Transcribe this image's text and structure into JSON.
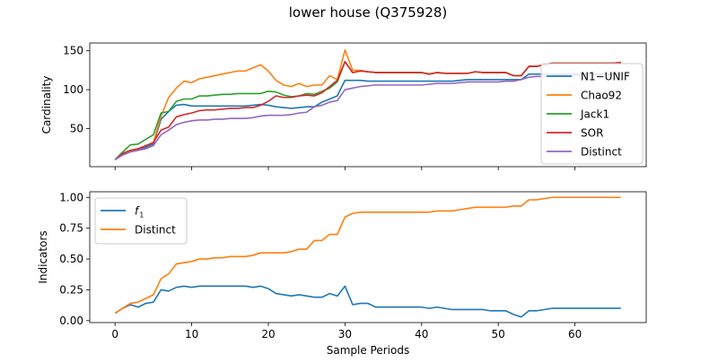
{
  "figure": {
    "title": "lower house (Q375928)"
  },
  "colors": {
    "blue": "#1f77b4",
    "orange": "#ff7f0e",
    "green": "#2ca02c",
    "red": "#d62728",
    "purple": "#9467bd"
  },
  "chart_data": [
    {
      "type": "line",
      "ylabel": "Cardinality",
      "xlabel": "",
      "xlim": [
        -3.3,
        69.3
      ],
      "ylim": [
        1,
        160
      ],
      "xticks": [
        0,
        10,
        20,
        30,
        40,
        50,
        60
      ],
      "show_x_tick_labels": false,
      "yticks": [
        50,
        100,
        150
      ],
      "legend_position": "right",
      "grid": false,
      "x": [
        0,
        1,
        2,
        3,
        4,
        5,
        6,
        7,
        8,
        9,
        10,
        11,
        12,
        13,
        14,
        15,
        16,
        17,
        18,
        19,
        20,
        21,
        22,
        23,
        24,
        25,
        26,
        27,
        28,
        29,
        30,
        31,
        32,
        33,
        34,
        35,
        36,
        37,
        38,
        39,
        40,
        41,
        42,
        43,
        44,
        45,
        46,
        47,
        48,
        49,
        50,
        51,
        52,
        53,
        54,
        55,
        56,
        57,
        58,
        59,
        60,
        61,
        62,
        63,
        64,
        65,
        66
      ],
      "series": [
        {
          "name": "N1−UNIF",
          "color": "#1f77b4",
          "values": [
            10,
            16,
            20,
            22,
            26,
            30,
            62,
            72,
            80,
            81,
            79,
            79,
            79,
            79,
            79,
            79,
            79,
            79,
            80,
            81,
            80,
            78,
            77,
            76,
            77,
            78,
            78,
            84,
            88,
            92,
            112,
            112,
            112,
            111,
            111,
            111,
            111,
            111,
            111,
            111,
            111,
            111,
            111,
            111,
            111,
            112,
            113,
            113,
            113,
            113,
            113,
            113,
            113,
            113,
            120,
            120,
            120,
            120,
            120,
            120,
            120,
            120,
            120,
            120,
            120,
            120,
            120
          ]
        },
        {
          "name": "Chao92",
          "color": "#ff7f0e",
          "values": [
            10,
            18,
            22,
            24,
            28,
            32,
            66,
            90,
            102,
            111,
            109,
            114,
            116,
            118,
            120,
            122,
            124,
            124,
            128,
            132,
            124,
            112,
            106,
            104,
            108,
            104,
            106,
            106,
            118,
            113,
            151,
            125,
            125,
            123,
            122,
            122,
            122,
            122,
            122,
            122,
            122,
            120,
            122,
            121,
            121,
            121,
            121,
            123,
            122,
            122,
            122,
            122,
            118,
            118,
            130,
            130,
            132,
            134,
            134,
            134,
            134,
            134,
            134,
            134,
            134,
            134,
            135
          ]
        },
        {
          "name": "Jack1",
          "color": "#2ca02c",
          "values": [
            10,
            20,
            29,
            30,
            36,
            42,
            70,
            72,
            85,
            88,
            88,
            92,
            92,
            93,
            94,
            94,
            95,
            95,
            95,
            95,
            98,
            97,
            93,
            91,
            92,
            95,
            94,
            98,
            102,
            110,
            136,
            122,
            124,
            123,
            122,
            122,
            122,
            122,
            122,
            122,
            122,
            120,
            122,
            121,
            121,
            121,
            121,
            123,
            122,
            122,
            122,
            122,
            118,
            118,
            130,
            130,
            132,
            134,
            134,
            134,
            134,
            134,
            134,
            134,
            134,
            134,
            135
          ]
        },
        {
          "name": "SOR",
          "color": "#d62728",
          "values": [
            10,
            18,
            22,
            24,
            28,
            32,
            48,
            52,
            65,
            68,
            70,
            73,
            74,
            74,
            75,
            76,
            76,
            77,
            77,
            80,
            85,
            92,
            90,
            90,
            92,
            93,
            92,
            96,
            104,
            112,
            136,
            122,
            124,
            123,
            122,
            122,
            122,
            122,
            122,
            122,
            122,
            120,
            122,
            121,
            121,
            121,
            121,
            123,
            122,
            122,
            122,
            122,
            118,
            118,
            130,
            130,
            132,
            134,
            134,
            134,
            134,
            134,
            134,
            134,
            134,
            134,
            135
          ]
        },
        {
          "name": "Distinct",
          "color": "#9467bd",
          "values": [
            10,
            16,
            20,
            22,
            24,
            28,
            42,
            48,
            55,
            58,
            60,
            61,
            61,
            62,
            62,
            63,
            63,
            63,
            64,
            66,
            67,
            67,
            67,
            68,
            70,
            71,
            78,
            80,
            84,
            86,
            100,
            102,
            104,
            105,
            106,
            106,
            106,
            106,
            106,
            106,
            106,
            107,
            108,
            108,
            108,
            109,
            110,
            110,
            110,
            110,
            110,
            111,
            111,
            113,
            116,
            117,
            117,
            118,
            118,
            119,
            119,
            119,
            119,
            119,
            119,
            120,
            120
          ]
        }
      ]
    },
    {
      "type": "line",
      "ylabel": "Indicators",
      "xlabel": "Sample Periods",
      "xlim": [
        -3.3,
        69.3
      ],
      "ylim": [
        -0.0155,
        1.0455
      ],
      "xticks": [
        0,
        10,
        20,
        30,
        40,
        50,
        60
      ],
      "yticks": [
        0.0,
        0.25,
        0.5,
        0.75,
        1.0
      ],
      "yticklabels": [
        "0.00",
        "0.25",
        "0.50",
        "0.75",
        "1.00"
      ],
      "legend_position": "upper left",
      "grid": false,
      "x": [
        0,
        1,
        2,
        3,
        4,
        5,
        6,
        7,
        8,
        9,
        10,
        11,
        12,
        13,
        14,
        15,
        16,
        17,
        18,
        19,
        20,
        21,
        22,
        23,
        24,
        25,
        26,
        27,
        28,
        29,
        30,
        31,
        32,
        33,
        34,
        35,
        36,
        37,
        38,
        39,
        40,
        41,
        42,
        43,
        44,
        45,
        46,
        47,
        48,
        49,
        50,
        51,
        52,
        53,
        54,
        55,
        56,
        57,
        58,
        59,
        60,
        61,
        62,
        63,
        64,
        65,
        66
      ],
      "series": [
        {
          "name": "f1",
          "color": "#1f77b4",
          "values": [
            0.06,
            0.1,
            0.13,
            0.11,
            0.14,
            0.15,
            0.25,
            0.24,
            0.27,
            0.28,
            0.27,
            0.28,
            0.28,
            0.28,
            0.28,
            0.28,
            0.28,
            0.28,
            0.27,
            0.28,
            0.26,
            0.22,
            0.21,
            0.2,
            0.21,
            0.2,
            0.19,
            0.19,
            0.22,
            0.2,
            0.28,
            0.13,
            0.14,
            0.14,
            0.11,
            0.11,
            0.11,
            0.11,
            0.11,
            0.11,
            0.11,
            0.1,
            0.11,
            0.1,
            0.09,
            0.09,
            0.09,
            0.09,
            0.09,
            0.08,
            0.08,
            0.08,
            0.05,
            0.03,
            0.08,
            0.08,
            0.09,
            0.1,
            0.1,
            0.1,
            0.1,
            0.1,
            0.1,
            0.1,
            0.1,
            0.1,
            0.1
          ]
        },
        {
          "name": "Distinct",
          "color": "#ff7f0e",
          "values": [
            0.06,
            0.1,
            0.14,
            0.15,
            0.18,
            0.21,
            0.34,
            0.38,
            0.46,
            0.47,
            0.48,
            0.5,
            0.5,
            0.51,
            0.51,
            0.52,
            0.52,
            0.52,
            0.53,
            0.55,
            0.55,
            0.55,
            0.55,
            0.56,
            0.58,
            0.58,
            0.65,
            0.65,
            0.7,
            0.7,
            0.84,
            0.87,
            0.88,
            0.88,
            0.88,
            0.88,
            0.88,
            0.88,
            0.88,
            0.88,
            0.88,
            0.88,
            0.89,
            0.89,
            0.89,
            0.9,
            0.91,
            0.92,
            0.92,
            0.92,
            0.92,
            0.92,
            0.93,
            0.93,
            0.98,
            0.98,
            0.99,
            1.0,
            1.0,
            1.0,
            1.0,
            1.0,
            1.0,
            1.0,
            1.0,
            1.0,
            1.0
          ]
        }
      ]
    }
  ]
}
